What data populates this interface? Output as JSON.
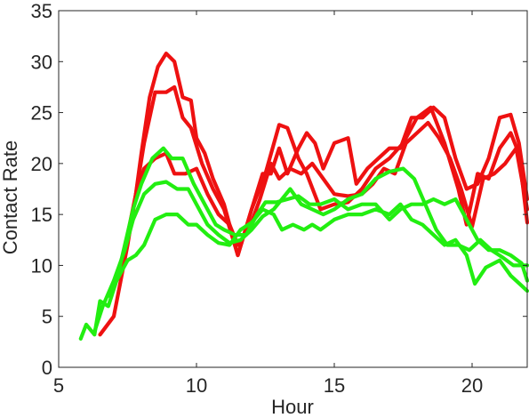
{
  "chart_data": {
    "type": "line",
    "title": "",
    "xlabel": "Hour",
    "ylabel": "Contact Rate",
    "xlim": [
      5,
      22
    ],
    "ylim": [
      0,
      35
    ],
    "xticks": [
      5,
      10,
      15,
      20
    ],
    "yticks": [
      0,
      5,
      10,
      15,
      20,
      25,
      30,
      35
    ],
    "grid": false,
    "legend": null,
    "colors": {
      "red": "#ee1111",
      "green": "#22ee11",
      "axis": "#262626"
    },
    "series": [
      {
        "color": "red",
        "points": [
          [
            6.5,
            3.2
          ],
          [
            7.0,
            5.0
          ],
          [
            7.5,
            12.0
          ],
          [
            7.8,
            17.0
          ],
          [
            8.0,
            21.0
          ],
          [
            8.3,
            26.5
          ],
          [
            8.6,
            29.5
          ],
          [
            8.9,
            30.8
          ],
          [
            9.2,
            30.0
          ],
          [
            9.5,
            26.5
          ],
          [
            9.8,
            26.2
          ],
          [
            10.0,
            22.5
          ],
          [
            10.3,
            21.0
          ],
          [
            10.6,
            18.5
          ],
          [
            11.0,
            16.0
          ],
          [
            11.5,
            11.0
          ],
          [
            12.0,
            15.5
          ],
          [
            12.5,
            19.0
          ],
          [
            13.0,
            23.8
          ],
          [
            13.3,
            23.5
          ],
          [
            13.7,
            20.5
          ],
          [
            14.0,
            19.0
          ],
          [
            14.5,
            15.5
          ],
          [
            15.0,
            16.0
          ],
          [
            15.5,
            16.2
          ],
          [
            16.0,
            17.5
          ],
          [
            16.5,
            19.5
          ],
          [
            17.0,
            20.5
          ],
          [
            17.5,
            22.0
          ],
          [
            18.0,
            24.5
          ],
          [
            18.5,
            25.5
          ],
          [
            19.0,
            22.0
          ],
          [
            19.5,
            17.5
          ],
          [
            19.8,
            14.0
          ],
          [
            20.2,
            19.0
          ],
          [
            20.6,
            18.5
          ],
          [
            21.0,
            21.5
          ],
          [
            21.4,
            23.0
          ],
          [
            21.7,
            21.0
          ],
          [
            22.0,
            14.2
          ]
        ]
      },
      {
        "color": "red",
        "points": [
          [
            7.5,
            13.0
          ],
          [
            7.8,
            17.0
          ],
          [
            8.1,
            22.0
          ],
          [
            8.5,
            27.0
          ],
          [
            8.9,
            27.0
          ],
          [
            9.2,
            27.5
          ],
          [
            9.5,
            24.5
          ],
          [
            9.8,
            23.5
          ],
          [
            10.2,
            20.0
          ],
          [
            10.6,
            17.5
          ],
          [
            11.0,
            15.5
          ],
          [
            11.5,
            11.0
          ],
          [
            12.0,
            15.5
          ],
          [
            12.4,
            19.0
          ],
          [
            12.7,
            19.0
          ],
          [
            13.0,
            21.5
          ],
          [
            13.3,
            19.0
          ],
          [
            13.7,
            21.5
          ],
          [
            14.0,
            23.0
          ],
          [
            14.3,
            22.0
          ],
          [
            14.6,
            19.5
          ],
          [
            15.0,
            22.0
          ],
          [
            15.5,
            22.5
          ],
          [
            15.8,
            18.0
          ],
          [
            16.2,
            19.5
          ],
          [
            16.6,
            20.5
          ],
          [
            17.0,
            21.5
          ],
          [
            17.4,
            21.5
          ],
          [
            17.8,
            24.5
          ],
          [
            18.2,
            24.5
          ],
          [
            18.6,
            25.5
          ],
          [
            19.0,
            24.5
          ],
          [
            19.4,
            20.5
          ],
          [
            19.8,
            17.5
          ],
          [
            20.2,
            18.0
          ],
          [
            20.6,
            20.5
          ],
          [
            21.0,
            24.5
          ],
          [
            21.4,
            24.8
          ],
          [
            21.7,
            22.0
          ],
          [
            22.0,
            16.5
          ]
        ]
      },
      {
        "color": "red",
        "points": [
          [
            7.8,
            17.0
          ],
          [
            8.1,
            19.5
          ],
          [
            8.5,
            20.5
          ],
          [
            8.9,
            21.0
          ],
          [
            9.2,
            19.0
          ],
          [
            9.6,
            19.0
          ],
          [
            10.0,
            19.5
          ],
          [
            10.4,
            17.0
          ],
          [
            10.8,
            15.0
          ],
          [
            11.2,
            14.0
          ],
          [
            11.5,
            12.0
          ],
          [
            11.9,
            13.5
          ],
          [
            12.3,
            16.5
          ],
          [
            12.7,
            20.0
          ],
          [
            13.0,
            18.5
          ],
          [
            13.4,
            19.5
          ],
          [
            13.8,
            19.0
          ],
          [
            14.2,
            20.0
          ],
          [
            14.6,
            18.5
          ],
          [
            15.0,
            17.0
          ],
          [
            15.5,
            16.8
          ],
          [
            16.0,
            17.0
          ],
          [
            16.4,
            18.0
          ],
          [
            16.8,
            19.5
          ],
          [
            17.2,
            19.0
          ],
          [
            17.6,
            22.0
          ],
          [
            18.0,
            23.0
          ],
          [
            18.4,
            24.0
          ],
          [
            18.8,
            22.5
          ],
          [
            19.2,
            20.5
          ],
          [
            19.6,
            17.5
          ],
          [
            20.0,
            13.8
          ],
          [
            20.4,
            18.5
          ],
          [
            20.8,
            19.0
          ],
          [
            21.2,
            20.0
          ],
          [
            21.6,
            21.5
          ],
          [
            22.0,
            15.5
          ]
        ]
      },
      {
        "color": "green",
        "points": [
          [
            5.8,
            2.8
          ],
          [
            6.0,
            4.2
          ],
          [
            6.3,
            3.2
          ],
          [
            6.5,
            6.5
          ],
          [
            6.8,
            6.0
          ],
          [
            7.1,
            8.5
          ],
          [
            7.5,
            10.5
          ],
          [
            7.8,
            11.0
          ],
          [
            8.1,
            12.0
          ],
          [
            8.5,
            14.5
          ],
          [
            8.9,
            15.0
          ],
          [
            9.3,
            15.0
          ],
          [
            9.7,
            14.0
          ],
          [
            10.0,
            14.0
          ],
          [
            10.4,
            13.0
          ],
          [
            10.8,
            12.2
          ],
          [
            11.2,
            12.0
          ],
          [
            11.6,
            13.5
          ],
          [
            12.0,
            14.2
          ],
          [
            12.4,
            15.5
          ],
          [
            12.8,
            15.0
          ],
          [
            13.1,
            13.5
          ],
          [
            13.5,
            14.0
          ],
          [
            13.9,
            13.5
          ],
          [
            14.2,
            14.0
          ],
          [
            14.5,
            13.5
          ],
          [
            15.0,
            14.5
          ],
          [
            15.5,
            15.0
          ],
          [
            16.0,
            15.0
          ],
          [
            16.5,
            15.5
          ],
          [
            17.0,
            15.0
          ],
          [
            17.4,
            16.0
          ],
          [
            17.8,
            14.5
          ],
          [
            18.2,
            14.0
          ],
          [
            18.6,
            13.0
          ],
          [
            19.0,
            12.0
          ],
          [
            19.4,
            12.5
          ],
          [
            19.8,
            11.0
          ],
          [
            20.1,
            8.2
          ],
          [
            20.5,
            9.8
          ],
          [
            21.0,
            10.5
          ],
          [
            21.4,
            9.0
          ],
          [
            21.8,
            8.0
          ],
          [
            22.0,
            7.5
          ]
        ]
      },
      {
        "color": "green",
        "points": [
          [
            6.3,
            3.5
          ],
          [
            6.6,
            6.0
          ],
          [
            7.0,
            8.5
          ],
          [
            7.4,
            11.5
          ],
          [
            7.7,
            14.5
          ],
          [
            8.1,
            17.0
          ],
          [
            8.5,
            18.0
          ],
          [
            8.9,
            18.2
          ],
          [
            9.3,
            17.5
          ],
          [
            9.7,
            17.5
          ],
          [
            10.0,
            16.0
          ],
          [
            10.4,
            14.0
          ],
          [
            10.8,
            13.0
          ],
          [
            11.2,
            12.2
          ],
          [
            11.6,
            12.5
          ],
          [
            12.0,
            13.5
          ],
          [
            12.4,
            14.8
          ],
          [
            12.8,
            15.5
          ],
          [
            13.1,
            16.5
          ],
          [
            13.4,
            17.5
          ],
          [
            13.8,
            16.0
          ],
          [
            14.2,
            15.5
          ],
          [
            14.6,
            15.0
          ],
          [
            15.0,
            15.5
          ],
          [
            15.5,
            16.5
          ],
          [
            16.0,
            17.0
          ],
          [
            16.5,
            18.5
          ],
          [
            17.0,
            19.2
          ],
          [
            17.5,
            19.5
          ],
          [
            17.9,
            18.5
          ],
          [
            18.3,
            16.0
          ],
          [
            18.7,
            13.5
          ],
          [
            19.1,
            12.0
          ],
          [
            19.5,
            12.0
          ],
          [
            19.9,
            11.5
          ],
          [
            20.3,
            12.5
          ],
          [
            20.7,
            11.5
          ],
          [
            21.1,
            10.8
          ],
          [
            21.5,
            10.0
          ],
          [
            22.0,
            10.0
          ]
        ]
      },
      {
        "color": "green",
        "points": [
          [
            6.8,
            7.0
          ],
          [
            7.1,
            8.5
          ],
          [
            7.4,
            12.0
          ],
          [
            7.7,
            15.5
          ],
          [
            8.0,
            18.0
          ],
          [
            8.4,
            20.5
          ],
          [
            8.8,
            21.5
          ],
          [
            9.1,
            20.5
          ],
          [
            9.5,
            20.5
          ],
          [
            9.9,
            18.0
          ],
          [
            10.3,
            16.0
          ],
          [
            10.7,
            14.0
          ],
          [
            11.0,
            13.5
          ],
          [
            11.4,
            13.0
          ],
          [
            11.8,
            13.0
          ],
          [
            12.2,
            15.0
          ],
          [
            12.5,
            16.2
          ],
          [
            12.9,
            16.2
          ],
          [
            13.3,
            16.5
          ],
          [
            13.7,
            16.8
          ],
          [
            14.1,
            16.0
          ],
          [
            14.5,
            16.0
          ],
          [
            15.0,
            16.5
          ],
          [
            15.5,
            15.5
          ],
          [
            16.0,
            16.0
          ],
          [
            16.5,
            16.0
          ],
          [
            17.0,
            14.5
          ],
          [
            17.4,
            15.5
          ],
          [
            17.8,
            16.0
          ],
          [
            18.2,
            16.0
          ],
          [
            18.6,
            16.5
          ],
          [
            19.0,
            16.0
          ],
          [
            19.4,
            16.5
          ],
          [
            19.8,
            14.5
          ],
          [
            20.2,
            12.5
          ],
          [
            20.6,
            11.5
          ],
          [
            21.0,
            11.5
          ],
          [
            21.4,
            11.0
          ],
          [
            21.8,
            10.2
          ],
          [
            22.0,
            8.5
          ]
        ]
      }
    ]
  }
}
